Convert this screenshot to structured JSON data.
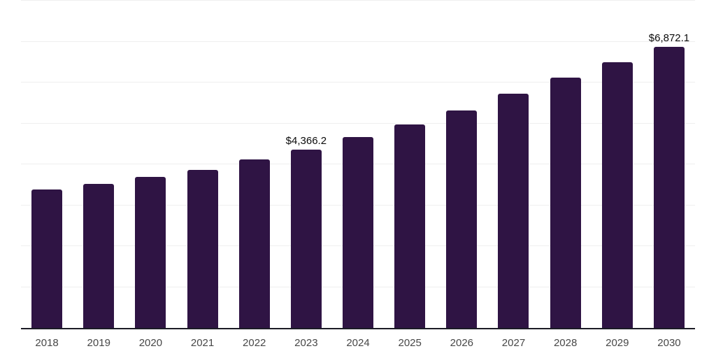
{
  "chart": {
    "background_color": "#ffffff",
    "bar_color": "#2f1444",
    "grid_color": "#efefef",
    "axis_line_color": "#1c1c26",
    "tick_label_color": "#474747",
    "value_label_color": "#0b0b0b"
  },
  "chart_data": {
    "type": "bar",
    "title": "",
    "xlabel": "",
    "ylabel": "",
    "categories": [
      "2018",
      "2019",
      "2020",
      "2021",
      "2022",
      "2023",
      "2024",
      "2025",
      "2026",
      "2027",
      "2028",
      "2029",
      "2030"
    ],
    "values": [
      3380,
      3530,
      3700,
      3870,
      4120,
      4366.2,
      4660,
      4970,
      5320,
      5730,
      6120,
      6500,
      6872.1
    ],
    "value_labels": [
      "",
      "",
      "",
      "",
      "",
      "$4,366.2",
      "",
      "",
      "",
      "",
      "",
      "",
      "$6,872.1"
    ],
    "ylim": [
      0,
      8000
    ],
    "grid_step": 1000,
    "grid": true,
    "y_tick_labels_shown": false,
    "legend": false,
    "data_label_positions": {
      "2023": "$4,366.2",
      "2030": "$6,872.1"
    }
  }
}
